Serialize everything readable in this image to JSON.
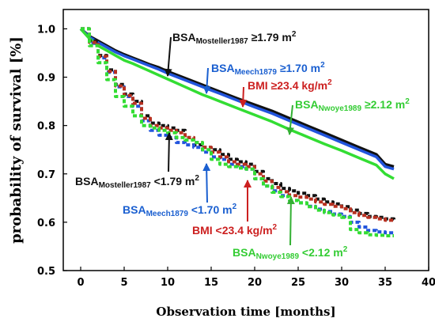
{
  "chart_data": {
    "type": "line",
    "xlabel": "Observation time [months]",
    "ylabel": "probability of survival [%]",
    "xlim": [
      -2,
      40
    ],
    "ylim": [
      0.5,
      1.04
    ],
    "xticks": [
      0,
      5,
      10,
      15,
      20,
      25,
      30,
      35,
      40
    ],
    "yticks": [
      0.5,
      0.6,
      0.7,
      0.8,
      0.9,
      1.0
    ],
    "ytick_labels": [
      "0.5",
      "0.6",
      "0.7",
      "0.8",
      "0.9",
      "1.0"
    ],
    "grid": false,
    "colors": {
      "black": "#111111",
      "blue": "#2255dd",
      "red": "#b83020",
      "green": "#33dd33",
      "arrow_blue": "#1a5fd0",
      "arrow_red": "#cc2020",
      "arrow_green": "#33b033"
    },
    "series": [
      {
        "color": "#111111",
        "dashed": false,
        "x": [
          0,
          1,
          2,
          3,
          4,
          5,
          6,
          7,
          8,
          9,
          10,
          12,
          14,
          15,
          16,
          18,
          20,
          22,
          24,
          26,
          28,
          30,
          32,
          34,
          35,
          36
        ],
        "y": [
          1.0,
          0.985,
          0.975,
          0.965,
          0.955,
          0.947,
          0.94,
          0.933,
          0.926,
          0.92,
          0.912,
          0.898,
          0.884,
          0.877,
          0.87,
          0.856,
          0.843,
          0.83,
          0.815,
          0.8,
          0.785,
          0.77,
          0.755,
          0.74,
          0.72,
          0.715
        ]
      },
      {
        "color": "#2255dd",
        "dashed": false,
        "x": [
          0,
          1,
          2,
          3,
          4,
          5,
          6,
          7,
          8,
          9,
          10,
          12,
          14,
          15,
          16,
          18,
          20,
          22,
          24,
          26,
          28,
          30,
          32,
          34,
          35,
          36
        ],
        "y": [
          1.0,
          0.983,
          0.972,
          0.962,
          0.952,
          0.944,
          0.937,
          0.93,
          0.923,
          0.916,
          0.908,
          0.894,
          0.88,
          0.873,
          0.866,
          0.852,
          0.838,
          0.825,
          0.81,
          0.795,
          0.78,
          0.765,
          0.75,
          0.735,
          0.715,
          0.71
        ]
      },
      {
        "color": "#33dd33",
        "dashed": false,
        "x": [
          0,
          1,
          2,
          3,
          4,
          5,
          6,
          7,
          8,
          9,
          10,
          12,
          14,
          15,
          16,
          18,
          20,
          22,
          24,
          26,
          28,
          30,
          32,
          34,
          35,
          36
        ],
        "y": [
          1.0,
          0.98,
          0.965,
          0.955,
          0.945,
          0.935,
          0.928,
          0.92,
          0.912,
          0.904,
          0.896,
          0.88,
          0.864,
          0.857,
          0.85,
          0.836,
          0.822,
          0.808,
          0.792,
          0.777,
          0.762,
          0.748,
          0.733,
          0.718,
          0.7,
          0.69
        ]
      },
      {
        "color": "#111111",
        "dashed": true,
        "x": [
          0,
          1,
          2,
          3,
          4,
          5,
          6,
          7,
          8,
          9,
          10,
          11,
          12,
          13,
          14,
          15,
          16,
          17,
          18,
          19,
          20,
          21,
          22,
          23,
          24,
          25,
          26,
          27,
          28,
          29,
          30,
          31,
          32,
          33,
          34,
          35,
          36
        ],
        "y": [
          1.0,
          0.975,
          0.945,
          0.915,
          0.885,
          0.865,
          0.85,
          0.82,
          0.805,
          0.8,
          0.795,
          0.79,
          0.775,
          0.76,
          0.755,
          0.75,
          0.74,
          0.73,
          0.725,
          0.72,
          0.705,
          0.69,
          0.68,
          0.67,
          0.665,
          0.66,
          0.655,
          0.648,
          0.642,
          0.638,
          0.632,
          0.625,
          0.618,
          0.612,
          0.61,
          0.607,
          0.605
        ]
      },
      {
        "color": "#2255dd",
        "dashed": true,
        "x": [
          0,
          1,
          2,
          3,
          4,
          5,
          6,
          7,
          8,
          9,
          10,
          11,
          12,
          13,
          14,
          15,
          16,
          17,
          18,
          19,
          20,
          21,
          22,
          23,
          24,
          25,
          26,
          27,
          28,
          29,
          30,
          31,
          32,
          33,
          34,
          35,
          36
        ],
        "y": [
          1.0,
          0.97,
          0.94,
          0.91,
          0.88,
          0.86,
          0.84,
          0.81,
          0.79,
          0.78,
          0.775,
          0.765,
          0.76,
          0.755,
          0.745,
          0.735,
          0.73,
          0.72,
          0.715,
          0.71,
          0.69,
          0.675,
          0.665,
          0.655,
          0.645,
          0.64,
          0.633,
          0.627,
          0.622,
          0.617,
          0.612,
          0.6,
          0.59,
          0.583,
          0.58,
          0.578,
          0.577
        ]
      },
      {
        "color": "#b83020",
        "dashed": true,
        "x": [
          0,
          1,
          2,
          3,
          4,
          5,
          6,
          7,
          8,
          9,
          10,
          11,
          12,
          13,
          14,
          15,
          16,
          17,
          18,
          19,
          20,
          21,
          22,
          23,
          24,
          25,
          26,
          27,
          28,
          29,
          30,
          31,
          32,
          33,
          34,
          35,
          36
        ],
        "y": [
          1.0,
          0.972,
          0.943,
          0.912,
          0.882,
          0.862,
          0.846,
          0.815,
          0.8,
          0.795,
          0.79,
          0.785,
          0.775,
          0.765,
          0.755,
          0.745,
          0.735,
          0.725,
          0.72,
          0.715,
          0.7,
          0.685,
          0.672,
          0.663,
          0.655,
          0.652,
          0.648,
          0.642,
          0.637,
          0.633,
          0.628,
          0.62,
          0.614,
          0.61,
          0.607,
          0.604,
          0.602
        ]
      },
      {
        "color": "#33dd33",
        "dashed": true,
        "x": [
          0,
          1,
          2,
          3,
          4,
          5,
          6,
          7,
          8,
          9,
          10,
          11,
          12,
          13,
          14,
          15,
          16,
          17,
          18,
          19,
          20,
          21,
          22,
          23,
          24,
          25,
          26,
          27,
          28,
          29,
          30,
          31,
          32,
          33,
          34,
          35,
          36
        ],
        "y": [
          1.0,
          0.965,
          0.93,
          0.895,
          0.86,
          0.84,
          0.82,
          0.8,
          0.795,
          0.79,
          0.785,
          0.775,
          0.77,
          0.765,
          0.75,
          0.73,
          0.72,
          0.715,
          0.712,
          0.71,
          0.69,
          0.675,
          0.662,
          0.653,
          0.645,
          0.64,
          0.632,
          0.625,
          0.62,
          0.615,
          0.61,
          0.585,
          0.578,
          0.574,
          0.573,
          0.572,
          0.572
        ]
      }
    ],
    "annotations": [
      {
        "main": "BSA",
        "sub": "Mosteller1987",
        "tail": " ≥1.79 m",
        "sup": "2",
        "color": "#111111",
        "arrow_color": "#111111"
      },
      {
        "main": "BSA",
        "sub": "Meech1879",
        "tail": " ≥1.70 m",
        "sup": "2",
        "color": "#1a5fd0",
        "arrow_color": "#1a5fd0"
      },
      {
        "main": "BMI ≥23.4 kg/m",
        "sub": "",
        "tail": "",
        "sup": "2",
        "color": "#cc2020",
        "arrow_color": "#cc2020"
      },
      {
        "main": "BSA",
        "sub": "Nwoye1989",
        "tail": " ≥2.12 m",
        "sup": "2",
        "color": "#33cc33",
        "arrow_color": "#33b033"
      },
      {
        "main": "BSA",
        "sub": "Mosteller1987",
        "tail": " <1.79 m",
        "sup": "2",
        "color": "#111111",
        "arrow_color": "#111111"
      },
      {
        "main": "BSA",
        "sub": "Meech1879",
        "tail": " <1.70 m",
        "sup": "2",
        "color": "#1a5fd0",
        "arrow_color": "#1a5fd0"
      },
      {
        "main": "BMI <23.4 kg/m",
        "sub": "",
        "tail": "",
        "sup": "2",
        "color": "#cc2020",
        "arrow_color": "#cc2020"
      },
      {
        "main": "BSA",
        "sub": "Nwoye1989",
        "tail": " <2.12 m",
        "sup": "2",
        "color": "#33cc33",
        "arrow_color": "#33b033"
      }
    ]
  }
}
